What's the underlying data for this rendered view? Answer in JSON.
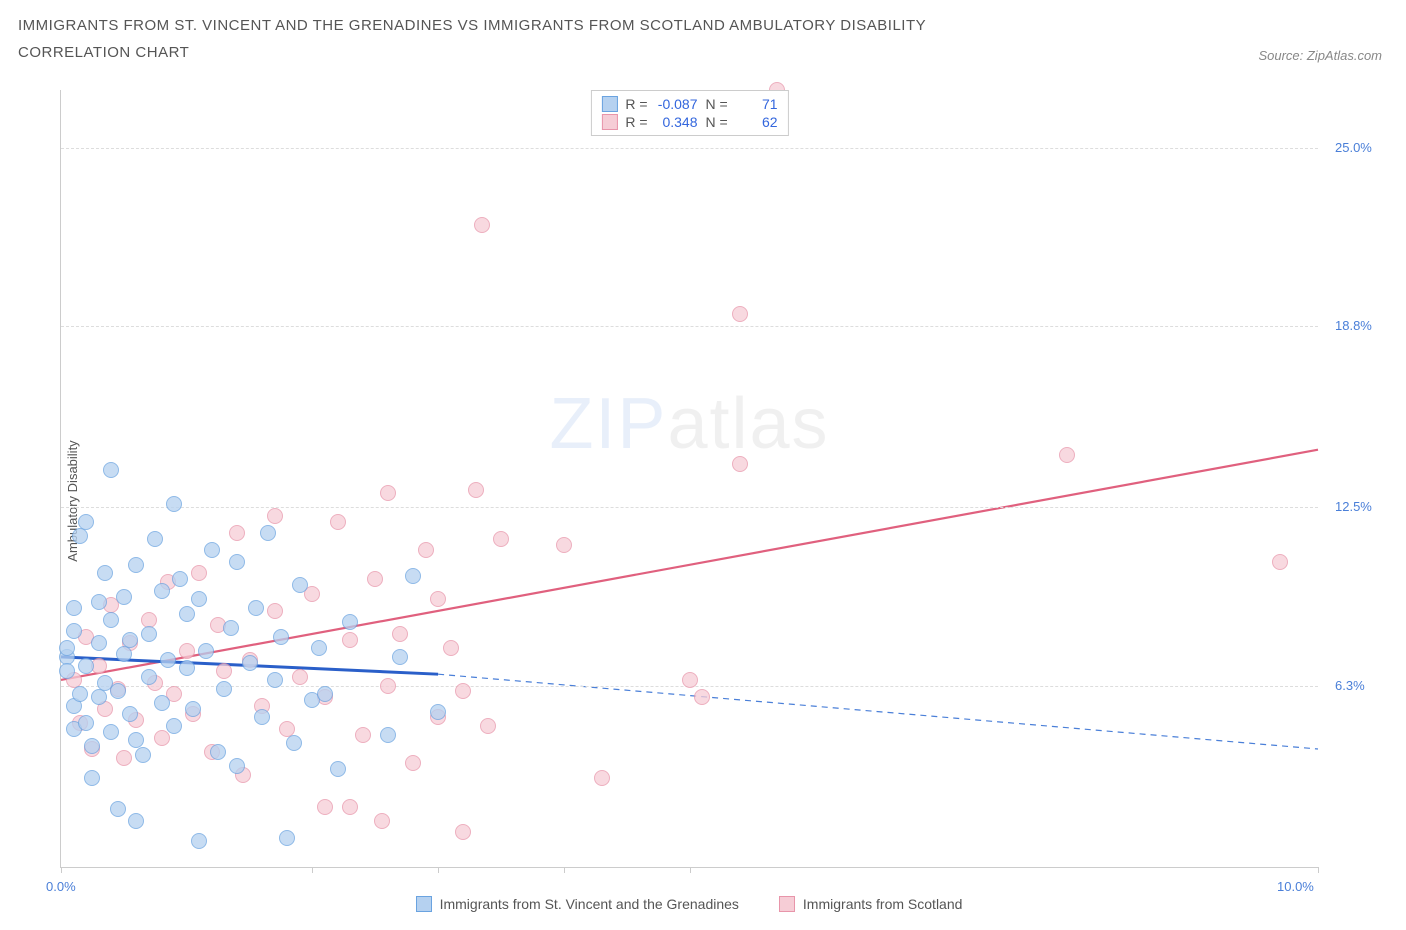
{
  "title_line1": "IMMIGRANTS FROM ST. VINCENT AND THE GRENADINES VS IMMIGRANTS FROM SCOTLAND AMBULATORY DISABILITY",
  "title_line2": "CORRELATION CHART",
  "source_label": "Source: ZipAtlas.com",
  "ylabel": "Ambulatory Disability",
  "watermark_a": "ZIP",
  "watermark_b": "atlas",
  "chart": {
    "type": "scatter",
    "background_color": "#ffffff",
    "grid_color": "#dddddd",
    "axis_color": "#cccccc",
    "xlim": [
      0.0,
      10.0
    ],
    "ylim": [
      0.0,
      27.0
    ],
    "x_ticks": [
      0.0,
      2.0,
      3.0,
      4.0,
      5.0,
      10.0
    ],
    "x_tick_labels": {
      "0": "0.0%",
      "10": "10.0%"
    },
    "y_gridlines": [
      6.3,
      12.5,
      18.8,
      25.0
    ],
    "y_tick_labels": [
      "6.3%",
      "12.5%",
      "18.8%",
      "25.0%"
    ],
    "point_radius": 8,
    "series": [
      {
        "id": "svg_series",
        "label": "Immigrants from St. Vincent and the Grenadines",
        "fill": "#b5d1f0",
        "stroke": "#6aa3e0",
        "r_label": "R =",
        "r_value": "-0.087",
        "n_label": "N =",
        "n_value": "71",
        "trend": {
          "x1": 0.0,
          "y1": 7.3,
          "x2": 3.0,
          "y2": 6.7,
          "color": "#2a5fc9",
          "width": 3,
          "dash": "none"
        },
        "trend_ext": {
          "x1": 3.0,
          "y1": 6.7,
          "x2": 10.0,
          "y2": 4.1,
          "color": "#4a7fd8",
          "width": 1.2,
          "dash": "6,5"
        },
        "points": [
          [
            0.05,
            7.3
          ],
          [
            0.05,
            6.8
          ],
          [
            0.05,
            7.6
          ],
          [
            0.1,
            9.0
          ],
          [
            0.1,
            8.2
          ],
          [
            0.1,
            4.8
          ],
          [
            0.1,
            5.6
          ],
          [
            0.15,
            11.5
          ],
          [
            0.15,
            6.0
          ],
          [
            0.2,
            12.0
          ],
          [
            0.2,
            7.0
          ],
          [
            0.2,
            5.0
          ],
          [
            0.25,
            4.2
          ],
          [
            0.25,
            3.1
          ],
          [
            0.3,
            9.2
          ],
          [
            0.3,
            7.8
          ],
          [
            0.3,
            5.9
          ],
          [
            0.35,
            10.2
          ],
          [
            0.35,
            6.4
          ],
          [
            0.4,
            13.8
          ],
          [
            0.4,
            8.6
          ],
          [
            0.4,
            4.7
          ],
          [
            0.45,
            6.1
          ],
          [
            0.45,
            2.0
          ],
          [
            0.5,
            7.4
          ],
          [
            0.5,
            9.4
          ],
          [
            0.55,
            5.3
          ],
          [
            0.55,
            7.9
          ],
          [
            0.6,
            10.5
          ],
          [
            0.6,
            4.4
          ],
          [
            0.65,
            3.9
          ],
          [
            0.7,
            8.1
          ],
          [
            0.7,
            6.6
          ],
          [
            0.75,
            11.4
          ],
          [
            0.8,
            9.6
          ],
          [
            0.8,
            5.7
          ],
          [
            0.85,
            7.2
          ],
          [
            0.9,
            12.6
          ],
          [
            0.9,
            4.9
          ],
          [
            0.95,
            10.0
          ],
          [
            1.0,
            6.9
          ],
          [
            1.0,
            8.8
          ],
          [
            1.05,
            5.5
          ],
          [
            1.1,
            9.3
          ],
          [
            1.1,
            0.9
          ],
          [
            1.15,
            7.5
          ],
          [
            1.2,
            11.0
          ],
          [
            1.25,
            4.0
          ],
          [
            1.3,
            6.2
          ],
          [
            1.35,
            8.3
          ],
          [
            1.4,
            10.6
          ],
          [
            1.4,
            3.5
          ],
          [
            1.5,
            7.1
          ],
          [
            1.55,
            9.0
          ],
          [
            1.6,
            5.2
          ],
          [
            1.65,
            11.6
          ],
          [
            1.7,
            6.5
          ],
          [
            1.75,
            8.0
          ],
          [
            1.8,
            1.0
          ],
          [
            1.85,
            4.3
          ],
          [
            1.9,
            9.8
          ],
          [
            2.0,
            5.8
          ],
          [
            2.05,
            7.6
          ],
          [
            2.1,
            6.0
          ],
          [
            2.2,
            3.4
          ],
          [
            2.3,
            8.5
          ],
          [
            2.6,
            4.6
          ],
          [
            2.7,
            7.3
          ],
          [
            2.8,
            10.1
          ],
          [
            3.0,
            5.4
          ],
          [
            0.6,
            1.6
          ]
        ]
      },
      {
        "id": "scot_series",
        "label": "Immigrants from Scotland",
        "fill": "#f6cdd6",
        "stroke": "#e895aa",
        "r_label": "R =",
        "r_value": "0.348",
        "n_label": "N =",
        "n_value": "62",
        "trend": {
          "x1": 0.0,
          "y1": 6.5,
          "x2": 10.0,
          "y2": 14.5,
          "color": "#e0607e",
          "width": 2.2,
          "dash": "none"
        },
        "points": [
          [
            0.1,
            6.5
          ],
          [
            0.15,
            5.0
          ],
          [
            0.2,
            8.0
          ],
          [
            0.25,
            4.1
          ],
          [
            0.3,
            7.0
          ],
          [
            0.35,
            5.5
          ],
          [
            0.4,
            9.1
          ],
          [
            0.45,
            6.2
          ],
          [
            0.5,
            3.8
          ],
          [
            0.55,
            7.8
          ],
          [
            0.6,
            5.1
          ],
          [
            0.7,
            8.6
          ],
          [
            0.75,
            6.4
          ],
          [
            0.8,
            4.5
          ],
          [
            0.85,
            9.9
          ],
          [
            0.9,
            6.0
          ],
          [
            1.0,
            7.5
          ],
          [
            1.05,
            5.3
          ],
          [
            1.1,
            10.2
          ],
          [
            1.2,
            4.0
          ],
          [
            1.25,
            8.4
          ],
          [
            1.3,
            6.8
          ],
          [
            1.4,
            11.6
          ],
          [
            1.45,
            3.2
          ],
          [
            1.5,
            7.2
          ],
          [
            1.6,
            5.6
          ],
          [
            1.7,
            8.9
          ],
          [
            1.7,
            12.2
          ],
          [
            1.8,
            4.8
          ],
          [
            1.9,
            6.6
          ],
          [
            2.0,
            9.5
          ],
          [
            2.1,
            5.9
          ],
          [
            2.1,
            2.1
          ],
          [
            2.2,
            12.0
          ],
          [
            2.3,
            2.1
          ],
          [
            2.3,
            7.9
          ],
          [
            2.4,
            4.6
          ],
          [
            2.5,
            10.0
          ],
          [
            2.55,
            1.6
          ],
          [
            2.6,
            6.3
          ],
          [
            2.6,
            13.0
          ],
          [
            2.7,
            8.1
          ],
          [
            2.8,
            3.6
          ],
          [
            2.9,
            11.0
          ],
          [
            3.0,
            5.2
          ],
          [
            3.0,
            9.3
          ],
          [
            3.1,
            7.6
          ],
          [
            3.2,
            6.1
          ],
          [
            3.2,
            1.2
          ],
          [
            3.3,
            13.1
          ],
          [
            3.35,
            22.3
          ],
          [
            3.4,
            4.9
          ],
          [
            3.5,
            11.4
          ],
          [
            4.0,
            11.2
          ],
          [
            4.3,
            3.1
          ],
          [
            5.0,
            6.5
          ],
          [
            5.1,
            5.9
          ],
          [
            5.4,
            19.2
          ],
          [
            5.4,
            14.0
          ],
          [
            5.7,
            27.0
          ],
          [
            8.0,
            14.3
          ],
          [
            9.7,
            10.6
          ]
        ]
      }
    ]
  },
  "legend_bottom": [
    {
      "label": "Immigrants from St. Vincent and the Grenadines",
      "fill": "#b5d1f0",
      "stroke": "#6aa3e0"
    },
    {
      "label": "Immigrants from Scotland",
      "fill": "#f6cdd6",
      "stroke": "#e895aa"
    }
  ]
}
